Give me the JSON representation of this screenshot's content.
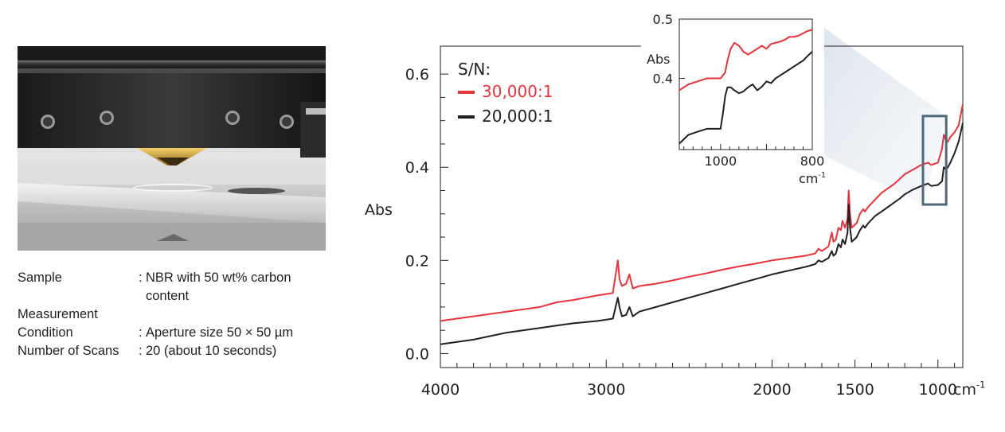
{
  "photo": {
    "subject": "ATR prism in contact with sample"
  },
  "info": {
    "rows": [
      {
        "label": "Sample",
        "value": "NBR with 50 wt% carbon content"
      },
      {
        "label": "Measurement Condition",
        "value": "Aperture size 50 × 50 µm"
      },
      {
        "label": "Number of Scans",
        "value": "20 (about 10 seconds)"
      }
    ]
  },
  "chart_data": {
    "type": "line",
    "xlabel": "cm⁻¹",
    "ylabel": "Abs",
    "xlim": [
      4000,
      850
    ],
    "ylim": [
      -0.03,
      0.66
    ],
    "x_ticks": [
      4000,
      3000,
      2000,
      1500,
      1000
    ],
    "y_ticks": [
      0.0,
      0.2,
      0.4,
      0.6
    ],
    "legend_title": "S/N:",
    "legend_position": "top-left",
    "series": [
      {
        "name": "30,000:1",
        "color": "#e8333a",
        "x": [
          4000,
          3800,
          3600,
          3400,
          3300,
          3200,
          3050,
          2960,
          2930,
          2920,
          2905,
          2880,
          2860,
          2850,
          2840,
          2800,
          2700,
          2600,
          2500,
          2400,
          2300,
          2200,
          2100,
          2000,
          1900,
          1800,
          1740,
          1720,
          1700,
          1660,
          1640,
          1630,
          1615,
          1600,
          1585,
          1575,
          1560,
          1545,
          1538,
          1530,
          1520,
          1505,
          1490,
          1470,
          1450,
          1440,
          1420,
          1380,
          1340,
          1300,
          1260,
          1230,
          1200,
          1150,
          1100,
          1060,
          1040,
          1000,
          975,
          965,
          960,
          950,
          940,
          925,
          900,
          875,
          850
        ],
        "y": [
          0.07,
          0.08,
          0.09,
          0.1,
          0.11,
          0.115,
          0.125,
          0.13,
          0.2,
          0.16,
          0.145,
          0.15,
          0.17,
          0.155,
          0.14,
          0.145,
          0.15,
          0.157,
          0.165,
          0.172,
          0.18,
          0.187,
          0.193,
          0.2,
          0.205,
          0.21,
          0.215,
          0.225,
          0.22,
          0.23,
          0.26,
          0.24,
          0.245,
          0.27,
          0.265,
          0.285,
          0.27,
          0.29,
          0.35,
          0.3,
          0.27,
          0.275,
          0.28,
          0.3,
          0.31,
          0.305,
          0.315,
          0.33,
          0.345,
          0.355,
          0.365,
          0.375,
          0.385,
          0.395,
          0.405,
          0.41,
          0.405,
          0.41,
          0.44,
          0.47,
          0.465,
          0.455,
          0.455,
          0.465,
          0.475,
          0.49,
          0.535
        ]
      },
      {
        "name": "20,000:1",
        "color": "#231f20",
        "x": [
          4000,
          3800,
          3600,
          3400,
          3300,
          3200,
          3050,
          2960,
          2930,
          2920,
          2905,
          2880,
          2860,
          2850,
          2840,
          2800,
          2700,
          2600,
          2500,
          2400,
          2300,
          2200,
          2100,
          2000,
          1900,
          1800,
          1740,
          1720,
          1700,
          1660,
          1640,
          1630,
          1615,
          1600,
          1585,
          1575,
          1560,
          1545,
          1538,
          1530,
          1520,
          1505,
          1490,
          1470,
          1450,
          1440,
          1420,
          1380,
          1340,
          1300,
          1260,
          1230,
          1200,
          1150,
          1100,
          1060,
          1040,
          1000,
          975,
          965,
          960,
          950,
          940,
          925,
          900,
          875,
          850
        ],
        "y": [
          0.02,
          0.03,
          0.045,
          0.055,
          0.06,
          0.065,
          0.07,
          0.075,
          0.12,
          0.1,
          0.08,
          0.083,
          0.1,
          0.09,
          0.08,
          0.09,
          0.1,
          0.11,
          0.12,
          0.13,
          0.14,
          0.15,
          0.16,
          0.17,
          0.178,
          0.186,
          0.192,
          0.2,
          0.197,
          0.205,
          0.22,
          0.21,
          0.215,
          0.235,
          0.228,
          0.245,
          0.235,
          0.26,
          0.32,
          0.27,
          0.24,
          0.245,
          0.25,
          0.265,
          0.275,
          0.27,
          0.28,
          0.295,
          0.305,
          0.315,
          0.325,
          0.333,
          0.342,
          0.352,
          0.36,
          0.365,
          0.36,
          0.362,
          0.37,
          0.4,
          0.398,
          0.395,
          0.4,
          0.41,
          0.43,
          0.455,
          0.495
        ]
      }
    ],
    "highlight_box": {
      "x": [
        1090,
        950
      ],
      "y": [
        0.32,
        0.51
      ]
    },
    "inset": {
      "ylabel": "Abs",
      "xlabel": "cm⁻¹",
      "xlim": [
        1090,
        800
      ],
      "ylim": [
        0.28,
        0.5
      ],
      "x_ticks": [
        1000,
        800
      ],
      "y_ticks": [
        0.4,
        0.5
      ],
      "series": [
        {
          "color": "#e8333a",
          "x": [
            1090,
            1070,
            1050,
            1030,
            1010,
            1000,
            990,
            985,
            978,
            970,
            960,
            950,
            940,
            930,
            920,
            910,
            900,
            890,
            880,
            870,
            860,
            850,
            840,
            830,
            820,
            810,
            800
          ],
          "y": [
            0.38,
            0.39,
            0.395,
            0.4,
            0.4,
            0.4,
            0.41,
            0.43,
            0.45,
            0.46,
            0.455,
            0.445,
            0.44,
            0.445,
            0.45,
            0.455,
            0.45,
            0.458,
            0.46,
            0.462,
            0.465,
            0.47,
            0.47,
            0.472,
            0.476,
            0.48,
            0.482
          ]
        },
        {
          "color": "#231f20",
          "x": [
            1090,
            1070,
            1050,
            1030,
            1010,
            1000,
            995,
            990,
            985,
            978,
            970,
            960,
            950,
            940,
            930,
            920,
            910,
            900,
            890,
            880,
            870,
            860,
            850,
            840,
            830,
            820,
            810,
            800
          ],
          "y": [
            0.29,
            0.305,
            0.31,
            0.315,
            0.315,
            0.315,
            0.34,
            0.37,
            0.385,
            0.385,
            0.38,
            0.375,
            0.378,
            0.385,
            0.39,
            0.38,
            0.386,
            0.395,
            0.392,
            0.4,
            0.405,
            0.41,
            0.415,
            0.42,
            0.425,
            0.43,
            0.438,
            0.445
          ]
        }
      ]
    }
  }
}
